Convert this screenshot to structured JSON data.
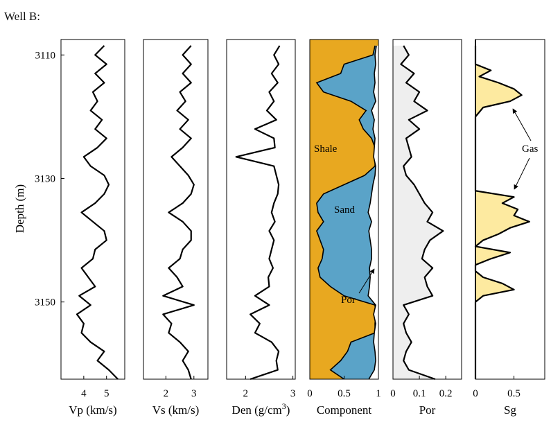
{
  "figure": {
    "title": "Well B:"
  },
  "chart_data": {
    "type": "line",
    "title": "Well B:",
    "y": {
      "label": "Depth (m)",
      "range": [
        3107.5,
        3162.5
      ],
      "ticks": [
        3110,
        3130,
        3150
      ],
      "inverted": true
    },
    "panels": [
      {
        "id": "vp",
        "xlabel": "Vp (km/s)",
        "xlim": [
          3.0,
          5.8
        ],
        "ticks": [
          4,
          5
        ],
        "tick_labels": [
          "4",
          "5"
        ],
        "series": [
          {
            "style": "line",
            "color": "#000000",
            "depth": [
              3108.5,
              3110,
              3111.5,
              3113,
              3114.5,
              3116,
              3117.5,
              3119,
              3120.5,
              3122,
              3123.5,
              3125,
              3126.5,
              3128,
              3129.5,
              3131,
              3132.5,
              3134,
              3135.5,
              3137,
              3138.5,
              3140,
              3141.5,
              3143,
              3144.5,
              3146,
              3147.5,
              3149,
              3150.5,
              3152,
              3153.5,
              3155,
              3156.5,
              3158,
              3159.5,
              3161,
              3162.5
            ],
            "values": [
              4.9,
              4.5,
              5.0,
              4.5,
              4.9,
              4.4,
              4.6,
              4.3,
              4.8,
              4.5,
              5.0,
              4.6,
              4.0,
              4.3,
              4.9,
              5.1,
              4.9,
              4.5,
              3.9,
              4.4,
              4.9,
              5.0,
              4.5,
              4.4,
              3.9,
              4.2,
              4.5,
              3.8,
              4.3,
              3.7,
              4.0,
              3.9,
              4.3,
              4.9,
              4.6,
              5.1,
              5.5
            ]
          }
        ]
      },
      {
        "id": "vs",
        "xlabel": "Vs (km/s)",
        "xlim": [
          1.2,
          3.5
        ],
        "ticks": [
          2,
          3
        ],
        "tick_labels": [
          "2",
          "3"
        ],
        "series": [
          {
            "style": "line",
            "color": "#000000",
            "depth": [
              3108.5,
              3110,
              3111.5,
              3113,
              3114.5,
              3116,
              3117.5,
              3119,
              3120.5,
              3122,
              3123.5,
              3125,
              3126.5,
              3128,
              3129.5,
              3131,
              3132.5,
              3134,
              3135.5,
              3137,
              3138.5,
              3140,
              3141.5,
              3143,
              3144.5,
              3146,
              3147.5,
              3149,
              3150.5,
              3152,
              3153.5,
              3155,
              3156.5,
              3158,
              3159.5,
              3161,
              3162.5
            ],
            "values": [
              2.9,
              2.6,
              2.9,
              2.6,
              2.9,
              2.5,
              2.7,
              2.4,
              2.8,
              2.5,
              2.9,
              2.6,
              2.2,
              2.5,
              2.8,
              3.0,
              2.9,
              2.6,
              2.1,
              2.6,
              2.9,
              2.9,
              2.6,
              2.5,
              2.1,
              2.4,
              2.6,
              1.9,
              3.0,
              1.9,
              2.2,
              2.1,
              2.5,
              2.8,
              2.6,
              2.8,
              2.9
            ]
          }
        ]
      },
      {
        "id": "den",
        "xlabel": "Den (g/cm",
        "xlabel_sup": "3",
        "xlabel_end": ")",
        "xlim": [
          1.6,
          3.05
        ],
        "ticks": [
          2,
          3
        ],
        "tick_labels": [
          "2",
          "3"
        ],
        "series": [
          {
            "style": "line",
            "color": "#000000",
            "depth": [
              3108.5,
              3110,
              3111.5,
              3113,
              3114.5,
              3116,
              3117.5,
              3119,
              3120.5,
              3122,
              3123.5,
              3125,
              3126.5,
              3128,
              3129.5,
              3131,
              3132.5,
              3134,
              3135.5,
              3137,
              3138.5,
              3140,
              3141.5,
              3143,
              3144.5,
              3146,
              3147.5,
              3149,
              3150.5,
              3152,
              3153.5,
              3155,
              3156.5,
              3158,
              3159.5,
              3161,
              3162.5
            ],
            "values": [
              2.72,
              2.6,
              2.7,
              2.55,
              2.68,
              2.5,
              2.6,
              2.45,
              2.65,
              2.2,
              2.6,
              2.62,
              1.8,
              2.6,
              2.65,
              2.7,
              2.68,
              2.6,
              2.55,
              2.62,
              2.5,
              2.6,
              2.55,
              2.5,
              2.58,
              2.48,
              2.5,
              2.2,
              2.5,
              2.1,
              2.3,
              2.2,
              2.55,
              2.7,
              2.65,
              2.68,
              2.1
            ]
          }
        ]
      },
      {
        "id": "component",
        "xlabel": "Component",
        "xlim": [
          0,
          1
        ],
        "ticks": [
          0,
          0.5,
          1
        ],
        "tick_labels": [
          "0",
          "0.5",
          "1"
        ],
        "areas": [
          {
            "name": "Shale",
            "color": "#e8a820"
          },
          {
            "name": "Sand",
            "color": "#5aa3c8"
          }
        ],
        "series": [
          {
            "style": "boundary",
            "color": "#000000",
            "label": "Por",
            "depth": [
              3108.5,
              3110,
              3111.5,
              3113,
              3114.5,
              3116,
              3117.5,
              3119,
              3120.5,
              3122,
              3123.5,
              3125,
              3126.5,
              3128,
              3129.5,
              3131,
              3132.5,
              3134,
              3135.5,
              3137,
              3138.5,
              3140,
              3141.5,
              3143,
              3144.5,
              3146,
              3147.5,
              3149,
              3150.5,
              3152,
              3153.5,
              3155,
              3156.5,
              3158,
              3159.5,
              3161,
              3162.5
            ],
            "values": [
              0.95,
              0.92,
              0.5,
              0.45,
              0.1,
              0.2,
              0.6,
              0.82,
              0.72,
              0.78,
              0.9,
              0.95,
              0.95,
              0.95,
              0.8,
              0.5,
              0.2,
              0.1,
              0.12,
              0.2,
              0.1,
              0.15,
              0.2,
              0.18,
              0.12,
              0.15,
              0.3,
              0.5,
              0.95,
              0.96,
              0.95,
              0.95,
              0.6,
              0.55,
              0.45,
              0.3,
              0.5
            ]
          },
          {
            "style": "line",
            "color": "#000000",
            "depth": [
              3108.5,
              3110,
              3111.5,
              3113,
              3114.5,
              3116,
              3117.5,
              3119,
              3120.5,
              3122,
              3123.5,
              3125,
              3126.5,
              3128,
              3129.5,
              3131,
              3132.5,
              3134,
              3135.5,
              3137,
              3138.5,
              3140,
              3141.5,
              3143,
              3144.5,
              3146,
              3147.5,
              3149,
              3150.5,
              3152,
              3153.5,
              3155,
              3156.5,
              3158,
              3159.5,
              3161,
              3162.5
            ],
            "values": [
              0.97,
              0.95,
              0.96,
              0.94,
              0.95,
              0.93,
              0.96,
              0.9,
              0.94,
              0.92,
              0.95,
              0.94,
              0.93,
              0.96,
              0.95,
              0.92,
              0.9,
              0.88,
              0.85,
              0.9,
              0.86,
              0.88,
              0.9,
              0.9,
              0.87,
              0.88,
              0.87,
              0.85,
              0.96,
              0.93,
              0.96,
              0.94,
              0.93,
              0.95,
              0.96,
              0.94,
              0.86
            ]
          }
        ],
        "annotations": [
          "Shale",
          "Sand",
          "Por"
        ]
      },
      {
        "id": "por",
        "xlabel": "Por",
        "xlim": [
          0,
          0.26
        ],
        "ticks": [
          0,
          0.1,
          0.2
        ],
        "tick_labels": [
          "0",
          "0.1",
          "0.2"
        ],
        "series": [
          {
            "style": "line",
            "fill": "#eeeeee",
            "color": "#000000",
            "depth": [
              3108.5,
              3110,
              3111.5,
              3113,
              3114.5,
              3116,
              3117.5,
              3119,
              3120.5,
              3122,
              3123.5,
              3125,
              3126.5,
              3128,
              3129.5,
              3131,
              3132.5,
              3134,
              3135.5,
              3137,
              3138.5,
              3140,
              3141.5,
              3143,
              3144.5,
              3146,
              3147.5,
              3149,
              3150.5,
              3152,
              3153.5,
              3155,
              3156.5,
              3158,
              3159.5,
              3161,
              3162.5
            ],
            "values": [
              0.04,
              0.06,
              0.03,
              0.08,
              0.05,
              0.1,
              0.08,
              0.13,
              0.06,
              0.1,
              0.05,
              0.06,
              0.07,
              0.04,
              0.05,
              0.08,
              0.1,
              0.12,
              0.15,
              0.13,
              0.19,
              0.14,
              0.12,
              0.11,
              0.15,
              0.12,
              0.13,
              0.15,
              0.04,
              0.06,
              0.04,
              0.05,
              0.07,
              0.05,
              0.04,
              0.06,
              0.16
            ]
          }
        ]
      },
      {
        "id": "sg",
        "xlabel": "Sg",
        "xlim": [
          0,
          0.9
        ],
        "ticks": [
          0,
          0.5
        ],
        "tick_labels": [
          "0",
          "0.5"
        ],
        "series": [
          {
            "style": "line",
            "fill": "#fdeaa0",
            "color": "#000000",
            "depth": [
              3108.5,
              3110,
              3111.5,
              3112.5,
              3113.5,
              3114.5,
              3115.5,
              3116.5,
              3117.5,
              3118.5,
              3120,
              3130,
              3132,
              3133,
              3134,
              3135,
              3136,
              3137,
              3138,
              3139,
              3140,
              3141,
              3142,
              3143,
              3144,
              3145,
              3146,
              3147,
              3148,
              3149,
              3150,
              3162.5
            ],
            "values": [
              0,
              0,
              0,
              0.2,
              0.05,
              0.3,
              0.5,
              0.6,
              0.45,
              0.1,
              0,
              0,
              0,
              0.5,
              0.35,
              0.55,
              0.5,
              0.7,
              0.45,
              0.3,
              0.1,
              0,
              0.45,
              0.2,
              0,
              0,
              0.1,
              0.35,
              0.5,
              0.1,
              0,
              0
            ]
          }
        ],
        "annotations": [
          "Gas"
        ]
      }
    ]
  }
}
